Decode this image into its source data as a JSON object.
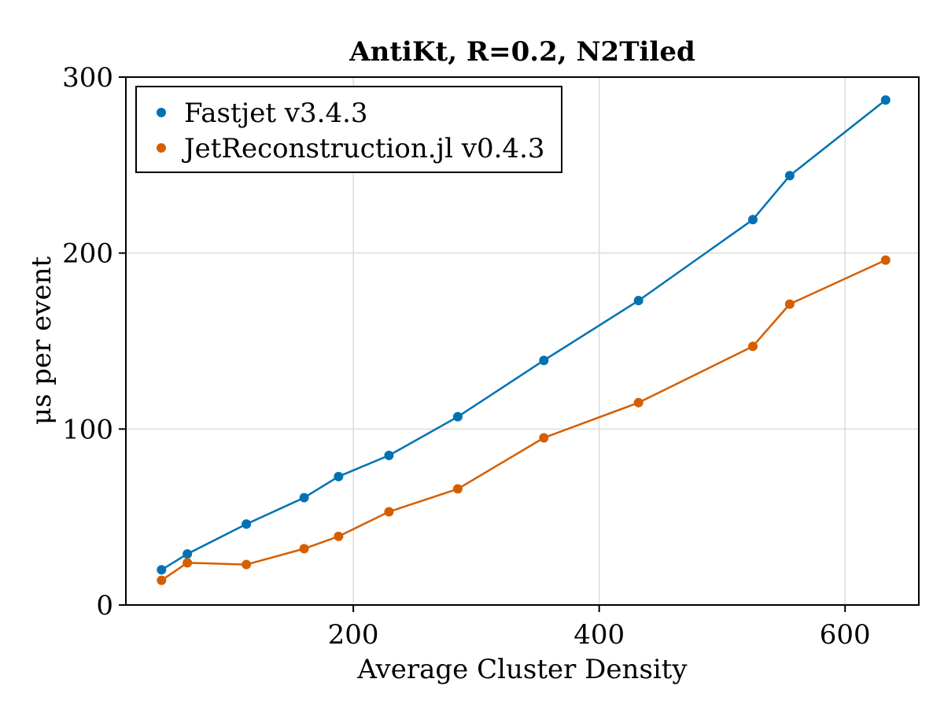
{
  "chart_data": {
    "type": "line",
    "title": "AntiKt, R=0.2, N2Tiled",
    "xlabel": "Average Cluster Density",
    "ylabel": "μs per event",
    "xlim": [
      15,
      660
    ],
    "ylim": [
      0,
      300
    ],
    "xticks": [
      200,
      400,
      600
    ],
    "yticks": [
      0,
      100,
      200,
      300
    ],
    "grid": true,
    "legend_position": "top-left",
    "series": [
      {
        "name": "Fastjet v3.4.3",
        "color": "#0072b2",
        "x": [
          44,
          65,
          113,
          160,
          188,
          229,
          285,
          355,
          432,
          525,
          555,
          633
        ],
        "y": [
          20,
          29,
          46,
          61,
          73,
          85,
          107,
          139,
          173,
          219,
          244,
          287
        ]
      },
      {
        "name": "JetReconstruction.jl v0.4.3",
        "color": "#d55e00",
        "x": [
          44,
          65,
          113,
          160,
          188,
          229,
          285,
          355,
          432,
          525,
          555,
          633
        ],
        "y": [
          14,
          24,
          23,
          32,
          39,
          53,
          66,
          95,
          115,
          147,
          171,
          196
        ]
      }
    ]
  }
}
